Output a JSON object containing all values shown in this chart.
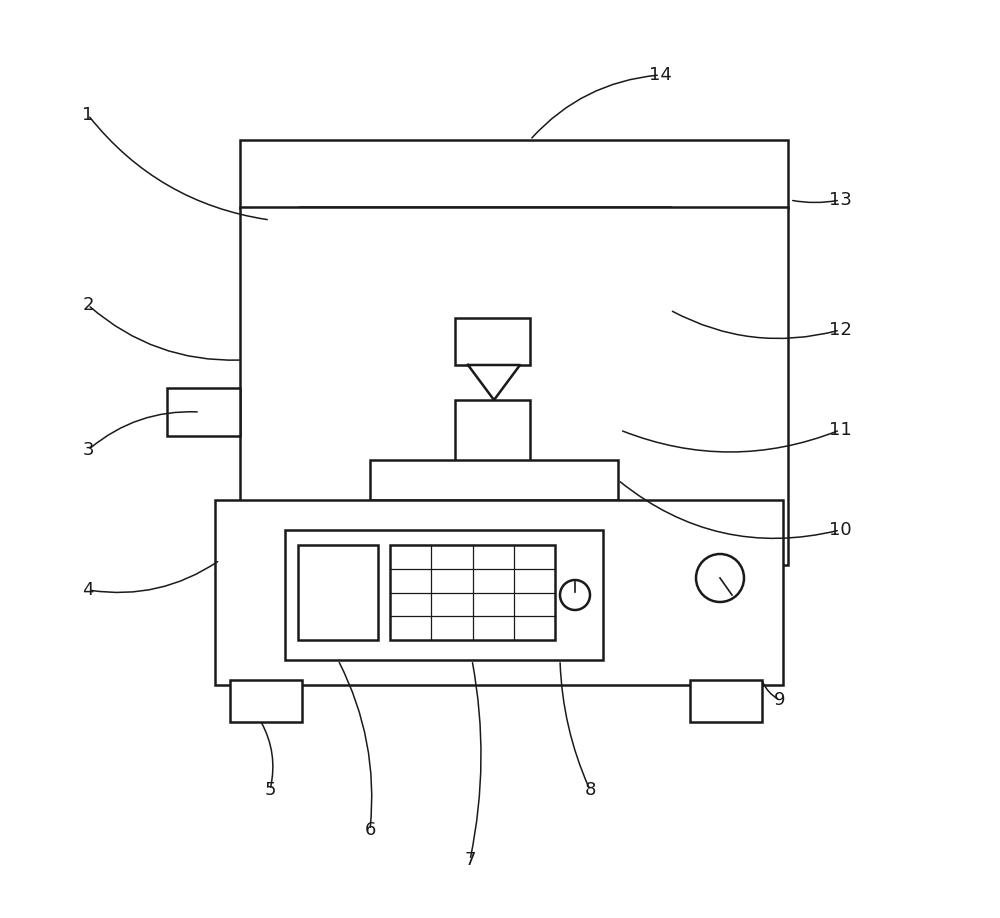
{
  "bg_color": "#ffffff",
  "line_color": "#1a1a1a",
  "label_color": "#1a1a1a",
  "line_width": 1.8
}
